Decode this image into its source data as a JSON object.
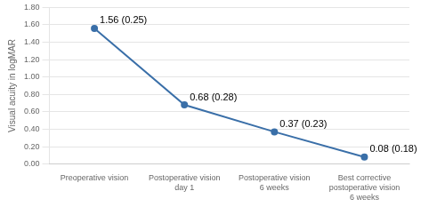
{
  "chart_data": {
    "type": "line",
    "categories": [
      "Preoperative vision",
      "Postoperative vision\nday 1",
      "Postoperative vision\n6 weeks",
      "Best corrective\npostoperative vision\n6 weeks"
    ],
    "values": [
      1.56,
      0.68,
      0.37,
      0.08
    ],
    "annotations": [
      "1.56 (0.25)",
      "0.68 (0.28)",
      "0.37 (0.23)",
      "0.08 (0.18)"
    ],
    "ylabel": "Visual acuity in logMAR",
    "ylim": [
      0.0,
      1.8
    ],
    "yticks": [
      {
        "value": 0,
        "label": "0.00"
      },
      {
        "value": 0.2,
        "label": "0.20"
      },
      {
        "value": 0.4,
        "label": "0.40"
      },
      {
        "value": 0.6,
        "label": "0.60"
      },
      {
        "value": 0.8,
        "label": "0.80"
      },
      {
        "value": 1.0,
        "label": "1.00"
      },
      {
        "value": 1.2,
        "label": "1.20"
      },
      {
        "value": 1.4,
        "label": "1.40"
      },
      {
        "value": 1.6,
        "label": "1.60"
      },
      {
        "value": 1.8,
        "label": "1.80"
      }
    ],
    "color": "#3a6fa8",
    "marker": "circle",
    "line_style": "solid",
    "grid": true
  }
}
